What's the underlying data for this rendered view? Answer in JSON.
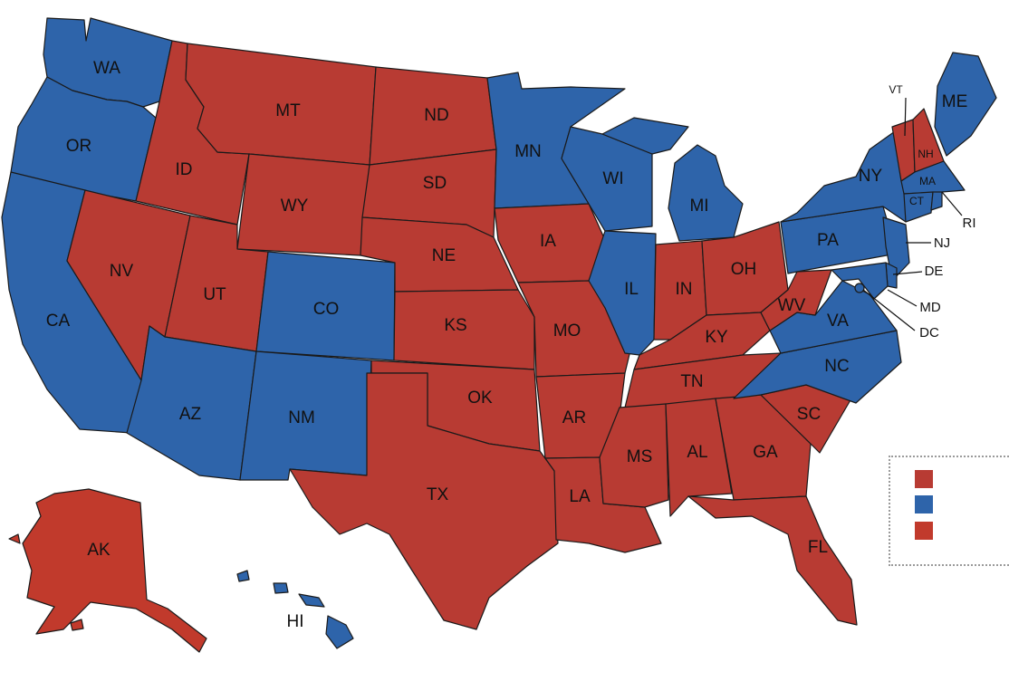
{
  "colors": {
    "republican": "#b83b33",
    "democrat": "#2e64aa",
    "alaska": "#c13a2c"
  },
  "states": {
    "WA": "WA",
    "OR": "OR",
    "CA": "CA",
    "NV": "NV",
    "ID": "ID",
    "MT": "MT",
    "WY": "WY",
    "UT": "UT",
    "CO": "CO",
    "AZ": "AZ",
    "NM": "NM",
    "ND": "ND",
    "SD": "SD",
    "NE": "NE",
    "KS": "KS",
    "OK": "OK",
    "TX": "TX",
    "MN": "MN",
    "IA": "IA",
    "MO": "MO",
    "AR": "AR",
    "LA": "LA",
    "WI": "WI",
    "IL": "IL",
    "MI": "MI",
    "IN": "IN",
    "OH": "OH",
    "KY": "KY",
    "TN": "TN",
    "MS": "MS",
    "AL": "AL",
    "GA": "GA",
    "FL": "FL",
    "SC": "SC",
    "NC": "NC",
    "VA": "VA",
    "WV": "WV",
    "PA": "PA",
    "NY": "NY",
    "ME": "ME",
    "VT": "VT",
    "NH": "NH",
    "MA": "MA",
    "CT": "CT",
    "RI": "RI",
    "NJ": "NJ",
    "DE": "DE",
    "MD": "MD",
    "DC": "DC",
    "AK": "AK",
    "HI": "HI"
  },
  "legend": {
    "items": [
      {
        "color": "#b83b33"
      },
      {
        "color": "#2e64aa"
      },
      {
        "color": "#c13a2c"
      }
    ]
  }
}
